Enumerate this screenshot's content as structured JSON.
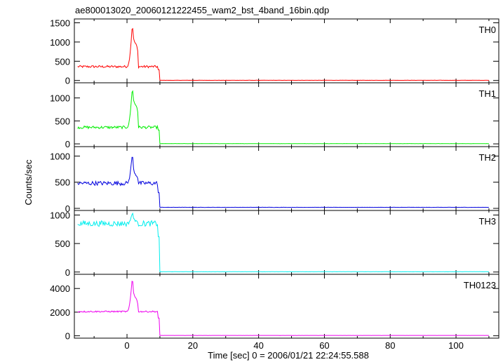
{
  "title": "ae800013020_20060121222455_wam2_bst_4band_16bin.qdp",
  "chart_data": {
    "type": "line",
    "xlabel": "Time [sec] 0 = 2006/01/21 22:24:55.588",
    "ylabel": "Counts/sec",
    "xlim": [
      -16,
      113
    ],
    "x_ticks": [
      0,
      20,
      40,
      60,
      80,
      100
    ],
    "panels": [
      {
        "name": "TH0",
        "color": "#ff0000",
        "ylim": [
          -60,
          1600
        ],
        "y_ticks": [
          0,
          500,
          1000,
          1500
        ],
        "baseline": 360,
        "noise": 30,
        "peak": 1480,
        "peak2": 920,
        "dip_end": 650,
        "tail": 280,
        "post": 5
      },
      {
        "name": "TH1",
        "color": "#00ee00",
        "ylim": [
          -60,
          1330
        ],
        "y_ticks": [
          0,
          500,
          1000
        ],
        "baseline": 360,
        "noise": 30,
        "peak": 1250,
        "peak2": 820,
        "dip_end": 600,
        "tail": 300,
        "post": 5
      },
      {
        "name": "TH2",
        "color": "#0000dd",
        "ylim": [
          -40,
          1180
        ],
        "y_ticks": [
          0,
          500,
          1000
        ],
        "baseline": 480,
        "noise": 40,
        "peak": 1060,
        "peak2": 620,
        "dip_end": 540,
        "tail": 300,
        "post": 20
      },
      {
        "name": "TH3",
        "color": "#00eeee",
        "ylim": [
          -40,
          1080
        ],
        "y_ticks": [
          0,
          500,
          1000
        ],
        "baseline": 850,
        "noise": 50,
        "peak": 1040,
        "peak2": 900,
        "dip_end": 850,
        "tail": 620,
        "post": 5
      },
      {
        "name": "TH0123",
        "color": "#ee00ee",
        "ylim": [
          -200,
          5200
        ],
        "y_ticks": [
          0,
          2000,
          4000
        ],
        "baseline": 2050,
        "noise": 60,
        "peak": 5000,
        "peak2": 3100,
        "dip_end": 2400,
        "tail": 1500,
        "post": 30
      }
    ],
    "flare": {
      "rise_start": 0.0,
      "peak_time": 1.6,
      "decay_end": 3.5,
      "drop_time": 9.8
    },
    "grid": false
  }
}
